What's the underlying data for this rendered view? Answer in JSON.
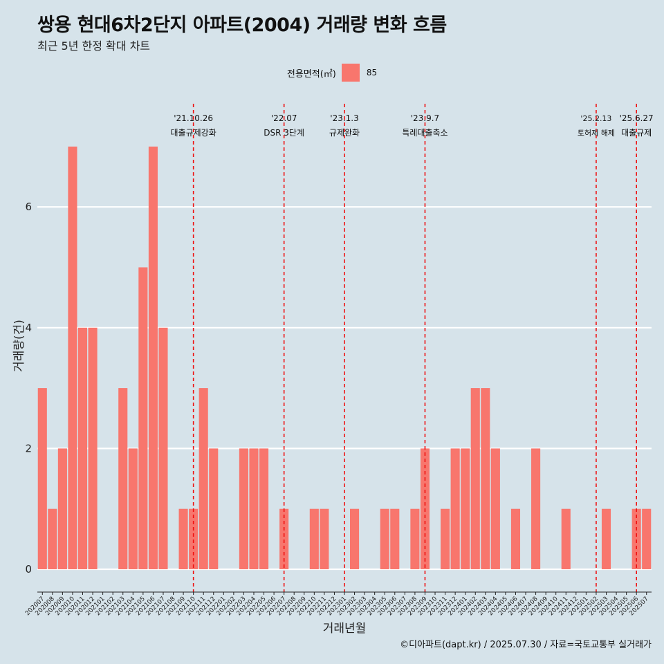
{
  "title": "쌍용 현대6차2단지 아파트(2004) 거래량 변화 흐름",
  "subtitle": "최근 5년 한정 확대 차트",
  "caption": "©디아파트(dapt.kr) / 2025.07.30 / 자료=국토교통부 실거래가",
  "legend": {
    "title": "전용면적(㎡)",
    "label": "85",
    "color": "#f8766d"
  },
  "colors": {
    "background": "#d6e3ea",
    "bar": "#f8766d",
    "grid": "#ffffff",
    "vline": "#ee1111"
  },
  "chart_data": {
    "type": "bar",
    "xlabel": "거래년월",
    "ylabel": "거래량(건)",
    "ylim": [
      0,
      7
    ],
    "yticks": [
      0,
      2,
      4,
      6
    ],
    "grid": "horizontal",
    "legend_position": "top",
    "categories": [
      "202007",
      "202008",
      "202009",
      "202010",
      "202011",
      "202012",
      "202101",
      "202102",
      "202103",
      "202104",
      "202105",
      "202106",
      "202107",
      "202108",
      "202109",
      "202110",
      "202111",
      "202112",
      "202201",
      "202202",
      "202203",
      "202204",
      "202205",
      "202206",
      "202207",
      "202208",
      "202209",
      "202210",
      "202211",
      "202212",
      "202301",
      "202302",
      "202303",
      "202304",
      "202305",
      "202306",
      "202307",
      "202308",
      "202309",
      "202310",
      "202311",
      "202312",
      "202401",
      "202402",
      "202403",
      "202404",
      "202405",
      "202406",
      "202407",
      "202408",
      "202409",
      "202410",
      "202411",
      "202412",
      "202501",
      "202502",
      "202503",
      "202504",
      "202505",
      "202506",
      "202507"
    ],
    "series": [
      {
        "name": "85",
        "values": [
          3,
          1,
          2,
          7,
          4,
          4,
          0,
          0,
          3,
          2,
          5,
          7,
          4,
          0,
          1,
          1,
          3,
          2,
          0,
          0,
          2,
          2,
          2,
          0,
          1,
          0,
          0,
          1,
          1,
          0,
          0,
          1,
          0,
          0,
          1,
          1,
          0,
          1,
          2,
          0,
          1,
          2,
          2,
          3,
          3,
          2,
          0,
          1,
          0,
          2,
          0,
          0,
          1,
          0,
          0,
          0,
          1,
          0,
          0,
          1,
          1
        ]
      }
    ],
    "annotations": [
      {
        "date": "'21.10.26",
        "label": "대출규제강화",
        "x": "202110"
      },
      {
        "date": "'22.07",
        "label": "DSR 3단계",
        "x": "202207"
      },
      {
        "date": "'23.1.3",
        "label": "규제완화",
        "x": "202301"
      },
      {
        "date": "'23.9.7",
        "label": "특례대출축소",
        "x": "202309"
      },
      {
        "date": "'25.2.13",
        "label": "토허제 해제",
        "x": "202502"
      },
      {
        "date": "'25.6.27",
        "label": "대출규제",
        "x": "202506"
      }
    ]
  }
}
